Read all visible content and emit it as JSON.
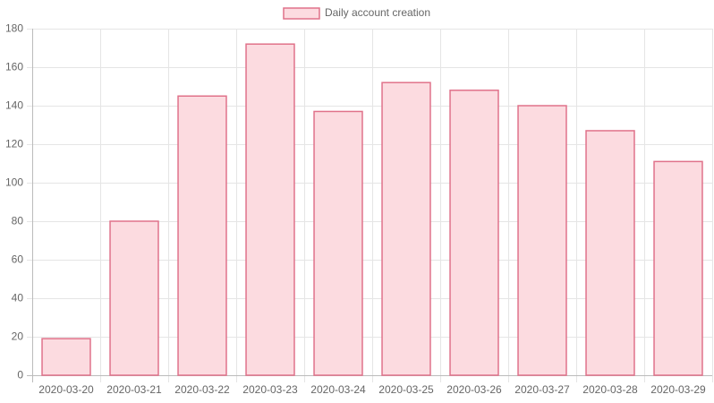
{
  "chart_data": {
    "type": "bar",
    "categories": [
      "2020-03-20",
      "2020-03-21",
      "2020-03-22",
      "2020-03-23",
      "2020-03-24",
      "2020-03-25",
      "2020-03-26",
      "2020-03-27",
      "2020-03-28",
      "2020-03-29"
    ],
    "series": [
      {
        "name": "Daily account creation",
        "color": "#fcdbe0",
        "border_color": "#e0728a",
        "values": [
          19,
          80,
          145,
          172,
          137,
          152,
          148,
          140,
          127,
          111
        ]
      }
    ],
    "ylim": [
      0,
      180
    ],
    "yticks": [
      0,
      20,
      40,
      60,
      80,
      100,
      120,
      140,
      160,
      180
    ],
    "grid": true,
    "legend": "top"
  }
}
